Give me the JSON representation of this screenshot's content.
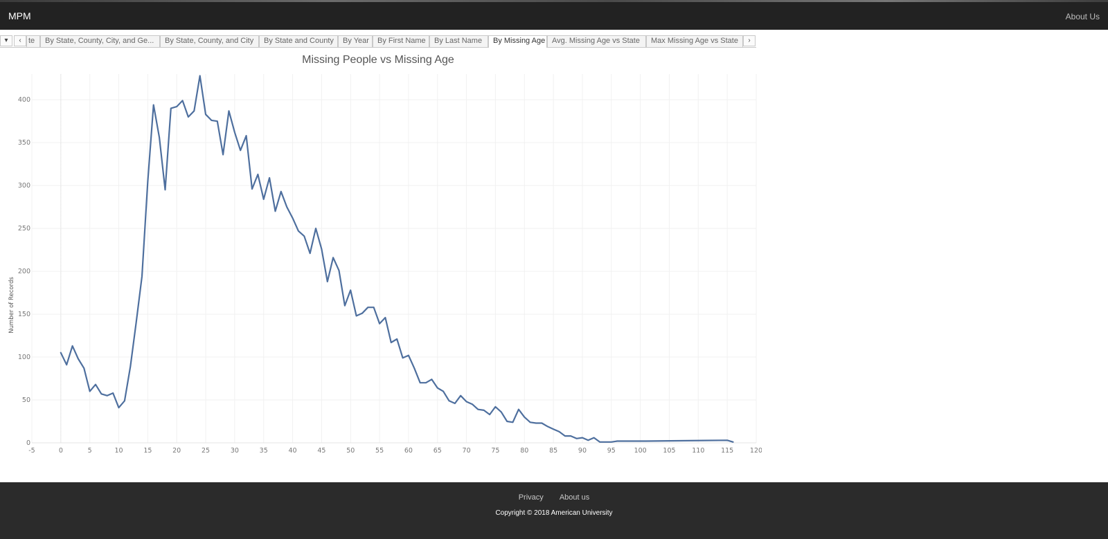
{
  "navbar": {
    "brand": "MPM",
    "about_label": "About Us"
  },
  "tabs": {
    "menu_glyph": "▾",
    "prev_glyph": "‹",
    "next_glyph": "›",
    "items": [
      "te",
      "By State, County, City, and Ge...",
      "By State, County, and City",
      "By State and County",
      "By Year",
      "By First Name",
      "By Last Name",
      "By Missing Age",
      "Avg. Missing Age vs State",
      "Max Missing Age vs State"
    ],
    "active": "By Missing Age"
  },
  "chart_data": {
    "type": "line",
    "title": "Missing People vs Missing Age",
    "xlabel": "",
    "ylabel": "Number of Records",
    "xlim": [
      -5,
      120
    ],
    "ylim": [
      0,
      430
    ],
    "grid": true,
    "color": "#4e6f9e",
    "x_ticks": [
      -5,
      0,
      5,
      10,
      15,
      20,
      25,
      30,
      35,
      40,
      45,
      50,
      55,
      60,
      65,
      70,
      75,
      80,
      85,
      90,
      95,
      100,
      105,
      110,
      115,
      120
    ],
    "y_ticks": [
      0,
      50,
      100,
      150,
      200,
      250,
      300,
      350,
      400
    ],
    "series": [
      {
        "x": [
          0,
          1,
          2,
          3,
          4,
          5,
          6,
          7,
          8,
          9,
          10,
          11,
          12,
          13,
          14,
          15,
          16,
          17,
          18,
          19,
          20,
          21,
          22,
          23,
          24,
          25,
          26,
          27,
          28,
          29,
          30,
          31,
          32,
          33,
          34,
          35,
          36,
          37,
          38,
          39,
          40,
          41,
          42,
          43,
          44,
          45,
          46,
          47,
          48,
          49,
          50,
          51,
          52,
          53,
          54,
          55,
          56,
          57,
          58,
          59,
          60,
          61,
          62,
          63,
          64,
          65,
          66,
          67,
          68,
          69,
          70,
          71,
          72,
          73,
          74,
          75,
          76,
          77,
          78,
          79,
          80,
          81,
          82,
          83,
          84,
          85,
          86,
          87,
          88,
          89,
          90,
          91,
          92,
          93,
          94,
          95,
          96,
          97,
          98,
          99,
          100,
          101,
          115,
          116
        ],
        "y": [
          105,
          91,
          113,
          98,
          87,
          60,
          68,
          57,
          55,
          58,
          41,
          49,
          89,
          140,
          194,
          305,
          394,
          356,
          295,
          390,
          392,
          399,
          380,
          387,
          428,
          383,
          376,
          375,
          336,
          387,
          362,
          341,
          358,
          296,
          313,
          284,
          309,
          270,
          293,
          275,
          262,
          247,
          241,
          221,
          250,
          226,
          188,
          216,
          201,
          160,
          178,
          148,
          151,
          158,
          158,
          139,
          146,
          117,
          121,
          99,
          102,
          87,
          70,
          70,
          74,
          64,
          60,
          49,
          46,
          55,
          48,
          45,
          39,
          38,
          33,
          42,
          36,
          25,
          24,
          39,
          30,
          24,
          23,
          23,
          19,
          16,
          13,
          8,
          8,
          5,
          6,
          3,
          6,
          1,
          1,
          1,
          2,
          2,
          2,
          2,
          2,
          2,
          3,
          1
        ]
      }
    ]
  },
  "footer": {
    "privacy_label": "Privacy",
    "about_label": "About us",
    "copyright": "Copyright © 2018 American University"
  }
}
